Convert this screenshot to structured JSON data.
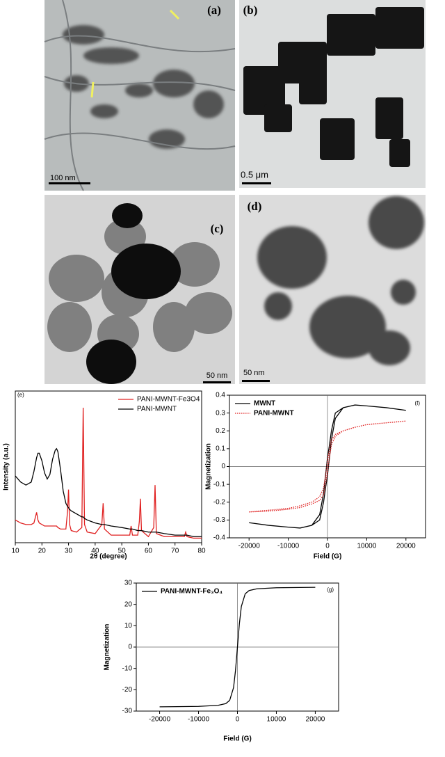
{
  "images": [
    {
      "label": "(a)",
      "scale_bar": "100 nm"
    },
    {
      "label": "(b)",
      "scale_bar": "0.5 μm"
    },
    {
      "label": "(c)",
      "scale_bar": "50 nm"
    },
    {
      "label": "(d)",
      "scale_bar": "50 nm"
    }
  ],
  "chart_data": [
    {
      "type": "line",
      "panel_label": "(e)",
      "x_label": "2θ (degree)",
      "y_label": "Intensity (a.u.)",
      "xlim": [
        10,
        80
      ],
      "xticks": [
        10,
        20,
        30,
        40,
        50,
        60,
        70,
        80
      ],
      "ylim": [
        0,
        100
      ],
      "legend": "top-right",
      "x": [
        10,
        12,
        14,
        16,
        17,
        18,
        18.5,
        19,
        20,
        21,
        22,
        23,
        24,
        25,
        25.5,
        26,
        27,
        28,
        29,
        29.6,
        30,
        30.4,
        31,
        33,
        35,
        35.5,
        36,
        37,
        40,
        42.5,
        43,
        43.5,
        46,
        50,
        53,
        53.5,
        54,
        56,
        56.6,
        57,
        57.4,
        60,
        62,
        62.5,
        63,
        66,
        70,
        73.5,
        74,
        74.5,
        77,
        80
      ],
      "series": [
        {
          "name": "PANI-MWNT-Fe3O4",
          "color": "#e02020",
          "values": [
            15,
            13,
            12,
            12,
            13,
            20,
            15,
            13,
            12,
            11,
            11,
            11,
            11,
            11,
            11,
            10,
            9,
            9,
            9,
            20,
            35,
            12,
            8,
            7,
            10,
            89,
            12,
            7,
            6,
            12,
            26,
            9,
            5,
            5,
            5,
            11,
            5,
            5,
            14,
            29,
            8,
            4,
            10,
            38,
            6,
            4,
            4,
            4,
            7,
            4,
            3,
            3
          ]
        },
        {
          "name": "PANI-MWNT",
          "color": "#000000",
          "values": [
            44,
            40,
            38,
            40,
            47,
            56,
            59,
            59,
            54,
            46,
            42,
            45,
            55,
            61,
            62,
            60,
            48,
            34,
            26,
            24,
            23,
            22,
            21,
            19,
            17,
            17,
            16,
            15,
            13,
            12,
            12,
            12,
            11,
            10,
            9,
            9,
            9,
            8,
            8,
            8,
            8,
            7,
            7,
            7,
            7,
            6,
            5,
            5,
            5,
            5,
            4,
            4
          ]
        }
      ]
    },
    {
      "type": "line",
      "panel_label": "(f)",
      "x_label": "Field (G)",
      "y_label": "Magnetization",
      "xlim": [
        -25000,
        25000
      ],
      "xticks": [
        -20000,
        -10000,
        0,
        10000,
        20000
      ],
      "ylim": [
        -0.4,
        0.4
      ],
      "yticks": [
        -0.4,
        -0.3,
        -0.2,
        -0.1,
        0.0,
        0.1,
        0.2,
        0.3,
        0.4
      ],
      "legend": "top-left",
      "zero_lines": true,
      "series": [
        {
          "name": "MWNT",
          "color": "#000000",
          "style": "solid",
          "x": [
            -20000,
            -15000,
            -10000,
            -7000,
            -4000,
            -2000,
            -1000,
            -500,
            0,
            500,
            1000,
            2000,
            4000,
            7000,
            10000,
            15000,
            20000,
            15000,
            10000,
            7000,
            4000,
            2000,
            1000,
            500,
            0,
            -500,
            -1000,
            -2000,
            -4000,
            -7000,
            -10000,
            -15000,
            -20000
          ],
          "values": [
            -0.315,
            -0.33,
            -0.34,
            -0.345,
            -0.33,
            -0.3,
            -0.2,
            -0.12,
            -0.05,
            0.05,
            0.15,
            0.27,
            0.33,
            0.345,
            0.34,
            0.33,
            0.315,
            0.33,
            0.34,
            0.345,
            0.33,
            0.3,
            0.2,
            0.12,
            0.05,
            -0.05,
            -0.15,
            -0.27,
            -0.33,
            -0.345,
            -0.34,
            -0.33,
            -0.315
          ]
        },
        {
          "name": "PANI-MWNT",
          "color": "#e02020",
          "style": "dotted",
          "x": [
            -20000,
            -15000,
            -10000,
            -7000,
            -4000,
            -2000,
            -1000,
            -500,
            0,
            500,
            1000,
            2000,
            4000,
            7000,
            10000,
            15000,
            20000,
            15000,
            10000,
            7000,
            4000,
            2000,
            1000,
            500,
            0,
            -500,
            -1000,
            -2000,
            -4000,
            -7000,
            -10000,
            -15000,
            -20000
          ],
          "values": [
            -0.255,
            -0.25,
            -0.24,
            -0.23,
            -0.21,
            -0.19,
            -0.16,
            -0.1,
            -0.03,
            0.05,
            0.12,
            0.17,
            0.2,
            0.22,
            0.235,
            0.245,
            0.255,
            0.245,
            0.235,
            0.22,
            0.2,
            0.18,
            0.15,
            0.1,
            0.03,
            -0.05,
            -0.12,
            -0.17,
            -0.2,
            -0.22,
            -0.235,
            -0.245,
            -0.255
          ]
        }
      ]
    },
    {
      "type": "line",
      "panel_label": "(g)",
      "x_label": "Field (G)",
      "y_label": "Magnetization",
      "xlim": [
        -26000,
        26000
      ],
      "xticks": [
        -20000,
        -10000,
        0,
        10000,
        20000
      ],
      "ylim": [
        -30,
        30
      ],
      "yticks": [
        -30,
        -20,
        -10,
        0,
        10,
        20,
        30
      ],
      "legend": "top-left",
      "zero_lines": true,
      "series": [
        {
          "name": "PANI-MWNT-Fe₃O₄",
          "color": "#000000",
          "style": "solid",
          "x": [
            -20000,
            -10000,
            -5000,
            -3000,
            -2000,
            -1000,
            -500,
            0,
            500,
            1000,
            2000,
            3000,
            5000,
            10000,
            20000
          ],
          "values": [
            -28,
            -27.8,
            -27.3,
            -26.5,
            -25,
            -19,
            -11,
            0,
            11,
            19,
            25,
            26.5,
            27.3,
            27.8,
            28
          ]
        }
      ]
    }
  ]
}
